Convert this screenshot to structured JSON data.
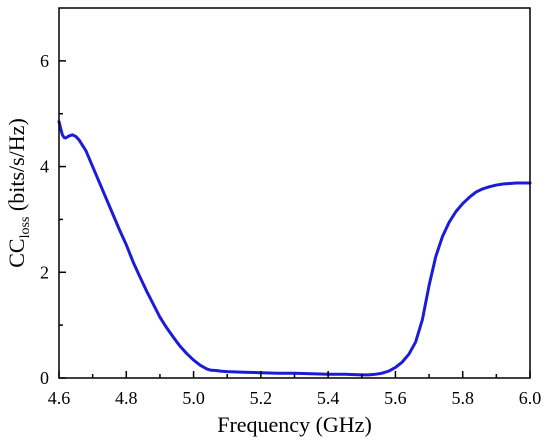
{
  "chart_data": {
    "type": "line",
    "xlabel": "Frequency (GHz)",
    "ylabel_main": "CC",
    "ylabel_sub": "loss",
    "ylabel_unit": " (bits/s/Hz)",
    "xlim": [
      4.6,
      6.0
    ],
    "ylim": [
      0,
      7
    ],
    "xticks": [
      4.6,
      4.8,
      5.0,
      5.2,
      5.4,
      5.6,
      5.8,
      6.0
    ],
    "xtick_labels": [
      "4.6",
      "4.8",
      "5.0",
      "5.2",
      "5.4",
      "5.6",
      "5.8",
      "6.0"
    ],
    "yticks": [
      0,
      2,
      4,
      6
    ],
    "ytick_labels": [
      "0",
      "2",
      "4",
      "6"
    ],
    "grid": false,
    "series": [
      {
        "color": "#1c1cd8",
        "x": [
          4.6,
          4.605,
          4.61,
          4.615,
          4.62,
          4.63,
          4.64,
          4.65,
          4.66,
          4.68,
          4.7,
          4.72,
          4.74,
          4.76,
          4.78,
          4.8,
          4.82,
          4.84,
          4.86,
          4.88,
          4.9,
          4.92,
          4.94,
          4.96,
          4.98,
          5.0,
          5.02,
          5.04,
          5.05,
          5.06,
          5.07,
          5.08,
          5.1,
          5.15,
          5.2,
          5.25,
          5.3,
          5.35,
          5.4,
          5.45,
          5.5,
          5.52,
          5.54,
          5.56,
          5.58,
          5.6,
          5.62,
          5.64,
          5.66,
          5.68,
          5.7,
          5.72,
          5.74,
          5.76,
          5.78,
          5.8,
          5.82,
          5.84,
          5.86,
          5.88,
          5.9,
          5.92,
          5.94,
          5.96,
          5.98,
          6.0
        ],
        "y": [
          4.85,
          4.72,
          4.6,
          4.55,
          4.54,
          4.58,
          4.6,
          4.57,
          4.5,
          4.3,
          4.0,
          3.7,
          3.4,
          3.1,
          2.8,
          2.52,
          2.2,
          1.92,
          1.65,
          1.4,
          1.15,
          0.95,
          0.77,
          0.6,
          0.46,
          0.34,
          0.24,
          0.17,
          0.15,
          0.145,
          0.14,
          0.13,
          0.12,
          0.11,
          0.1,
          0.09,
          0.09,
          0.08,
          0.07,
          0.07,
          0.06,
          0.06,
          0.07,
          0.09,
          0.13,
          0.2,
          0.3,
          0.45,
          0.68,
          1.1,
          1.75,
          2.3,
          2.68,
          2.95,
          3.15,
          3.3,
          3.42,
          3.52,
          3.58,
          3.62,
          3.65,
          3.67,
          3.68,
          3.69,
          3.69,
          3.69
        ]
      }
    ]
  }
}
